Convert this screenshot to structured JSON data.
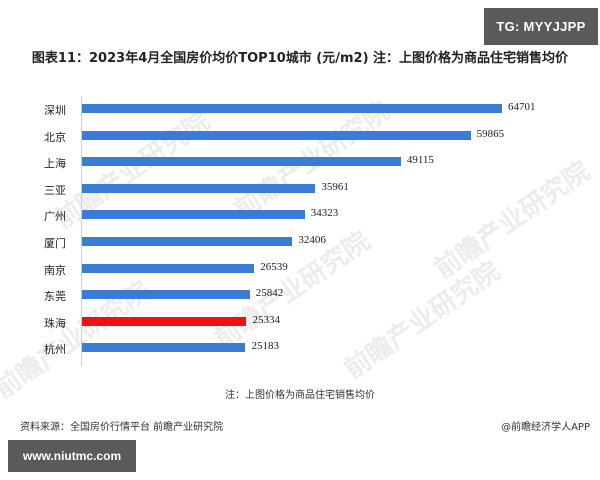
{
  "badges": {
    "top_right": "TG: MYYJJPP",
    "bottom_left": "www.niutmc.com"
  },
  "watermark": "前瞻产业研究院",
  "chart_data": {
    "type": "bar",
    "orientation": "horizontal",
    "title": "图表11：2023年4月全国房价均价TOP10城市 (元/m2) 注：上图价格为商品住宅销售均价",
    "xlabel": "",
    "ylabel": "",
    "categories": [
      "深圳",
      "北京",
      "上海",
      "三亚",
      "广州",
      "厦门",
      "南京",
      "东莞",
      "珠海",
      "杭州"
    ],
    "values": [
      64701,
      59865,
      49115,
      35961,
      34323,
      32406,
      26539,
      25842,
      25334,
      25183
    ],
    "labels": [
      "64701",
      "59865",
      "49115",
      "35961",
      "34323",
      "32406",
      "26539",
      "25842",
      "25334",
      "25183"
    ],
    "colors": [
      "#3a7bd5",
      "#3a7bd5",
      "#3a7bd5",
      "#3a7bd5",
      "#3a7bd5",
      "#3a7bd5",
      "#3a7bd5",
      "#3a7bd5",
      "#ee1111",
      "#3a7bd5"
    ],
    "highlight": "珠海",
    "xlim": [
      0,
      67000
    ],
    "grid": false,
    "legend": null,
    "data_labels": true
  },
  "footer": {
    "note": "注：上图价格为商品住宅销售均价",
    "source": "资料来源：全国房价行情平台 前瞻产业研究院",
    "credit": "@前瞻经济学人APP"
  }
}
